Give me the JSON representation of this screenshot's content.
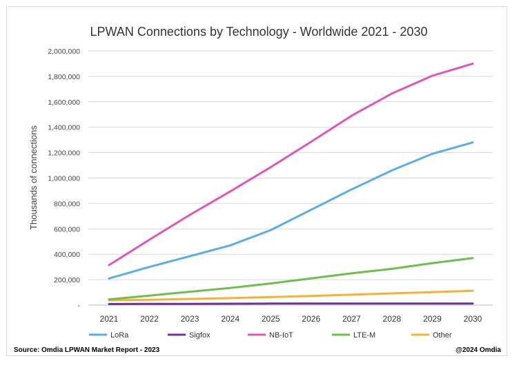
{
  "chart_data": {
    "type": "line",
    "title": "LPWAN Connections by Technology - Worldwide 2021 - 2030",
    "xlabel": "",
    "ylabel": "Thousands of connections",
    "categories": [
      "2021",
      "2022",
      "2023",
      "2024",
      "2025",
      "2026",
      "2027",
      "2028",
      "2029",
      "2030"
    ],
    "ylim": [
      0,
      2000000
    ],
    "yticks": [
      0,
      200000,
      400000,
      600000,
      800000,
      1000000,
      1200000,
      1400000,
      1600000,
      1800000,
      2000000
    ],
    "ytick_labels": [
      "-",
      "200,000",
      "400,000",
      "600,000",
      "800,000",
      "1,000,000",
      "1,200,000",
      "1,400,000",
      "1,600,000",
      "1,800,000",
      "2,000,000"
    ],
    "grid": true,
    "legend_position": "bottom",
    "series": [
      {
        "name": "LoRa",
        "color": "#5aaee8",
        "values": [
          210000,
          300000,
          385000,
          470000,
          590000,
          750000,
          910000,
          1060000,
          1190000,
          1280000
        ]
      },
      {
        "name": "Sigfox",
        "color": "#7030a0",
        "values": [
          8000,
          9000,
          10000,
          11000,
          12000,
          12000,
          12000,
          12000,
          12000,
          12000
        ]
      },
      {
        "name": "NB-IoT",
        "color": "#e055b8",
        "values": [
          315000,
          515000,
          710000,
          895000,
          1085000,
          1285000,
          1490000,
          1665000,
          1805000,
          1900000
        ]
      },
      {
        "name": "LTE-M",
        "color": "#6cc04a",
        "values": [
          45000,
          75000,
          105000,
          135000,
          170000,
          210000,
          250000,
          285000,
          330000,
          370000
        ]
      },
      {
        "name": "Other",
        "color": "#f6b135",
        "values": [
          38000,
          42000,
          48000,
          55000,
          63000,
          72000,
          82000,
          92000,
          102000,
          112000
        ]
      }
    ]
  },
  "footer": {
    "source": "Source: Omdia LPWAN Market Report - 2023",
    "copyright": "@2024 Omdia"
  }
}
